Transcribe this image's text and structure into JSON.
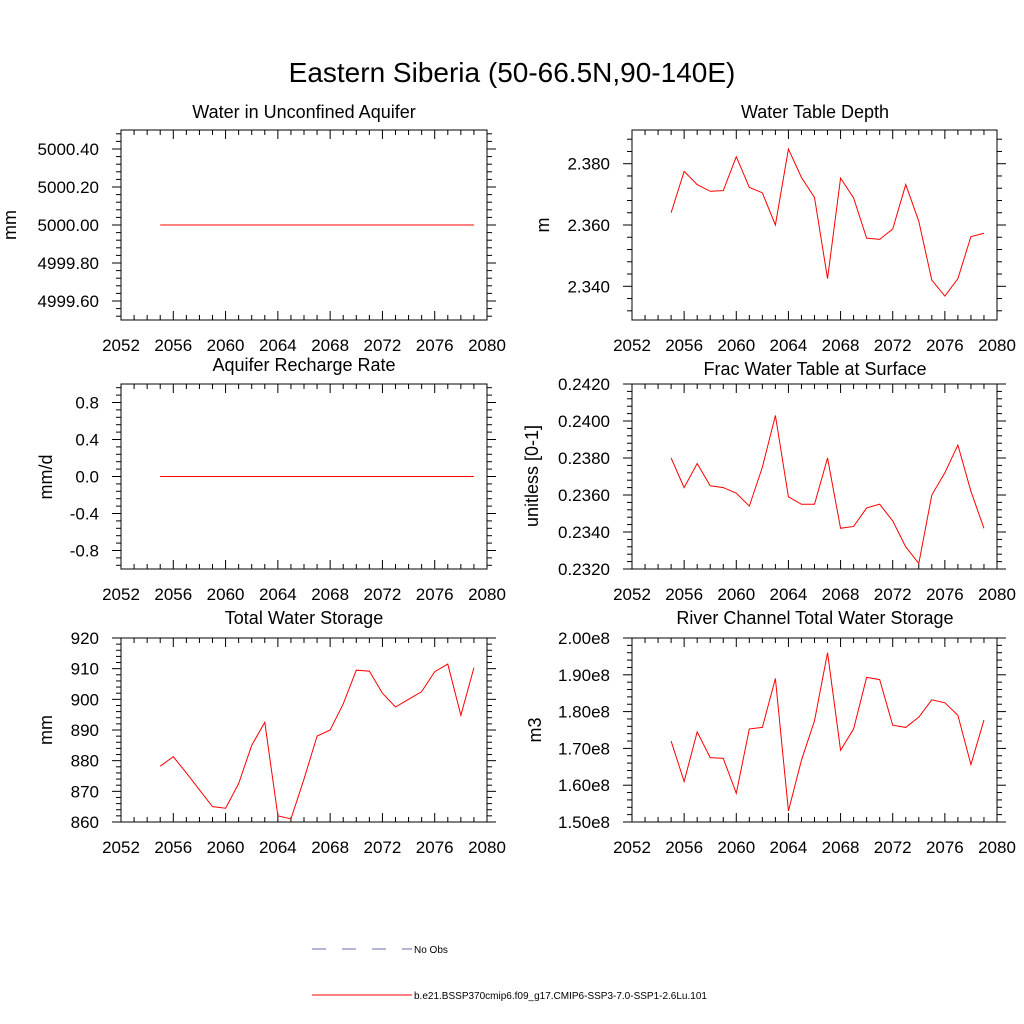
{
  "figure": {
    "title": "Eastern Siberia (50-66.5N,90-140E)",
    "series_color": "#ff0000",
    "obs_color": "#6b6bb0"
  },
  "legend": {
    "obs_label": "No Obs",
    "model_label": "b.e21.BSSP370cmip6.f09_g17.CMIP6-SSP3-7.0-SSP1-2.6Lu.101"
  },
  "chart_data": [
    {
      "type": "line",
      "title": "Water in Unconfined Aquifer",
      "ylabel": "mm",
      "xlabel": "",
      "xlim": [
        2052,
        2080
      ],
      "ylim": [
        4999.5,
        5000.5
      ],
      "xticks": [
        2052,
        2056,
        2060,
        2064,
        2068,
        2072,
        2076,
        2080
      ],
      "xtick_labels": [
        "2052",
        "2056",
        "2060",
        "2064",
        "2068",
        "2072",
        "2076",
        "2080"
      ],
      "yticks": [
        4999.6,
        4999.8,
        5000.0,
        5000.2,
        5000.4
      ],
      "ytick_labels": [
        "4999.60",
        "4999.80",
        "5000.00",
        "5000.20",
        "5000.40"
      ],
      "y_minor_step": 0.04,
      "x": [
        2055,
        2056,
        2057,
        2058,
        2059,
        2060,
        2061,
        2062,
        2063,
        2064,
        2065,
        2066,
        2067,
        2068,
        2069,
        2070,
        2071,
        2072,
        2073,
        2074,
        2075,
        2076,
        2077,
        2078,
        2079
      ],
      "series": [
        {
          "values": [
            5000,
            5000,
            5000,
            5000,
            5000,
            5000,
            5000,
            5000,
            5000,
            5000,
            5000,
            5000,
            5000,
            5000,
            5000,
            5000,
            5000,
            5000,
            5000,
            5000,
            5000,
            5000,
            5000,
            5000,
            5000
          ]
        }
      ]
    },
    {
      "type": "line",
      "title": "Water Table Depth",
      "ylabel": "m",
      "xlabel": "",
      "xlim": [
        2052,
        2080
      ],
      "ylim": [
        2.329,
        2.391
      ],
      "xticks": [
        2052,
        2056,
        2060,
        2064,
        2068,
        2072,
        2076,
        2080
      ],
      "xtick_labels": [
        "2052",
        "2056",
        "2060",
        "2064",
        "2068",
        "2072",
        "2076",
        "2080"
      ],
      "yticks": [
        2.34,
        2.36,
        2.38
      ],
      "ytick_labels": [
        "2.340",
        "2.360",
        "2.380"
      ],
      "y_minor_step": 0.004,
      "x": [
        2055,
        2056,
        2057,
        2058,
        2059,
        2060,
        2061,
        2062,
        2063,
        2064,
        2065,
        2066,
        2067,
        2068,
        2069,
        2070,
        2071,
        2072,
        2073,
        2074,
        2075,
        2076,
        2077,
        2078,
        2079
      ],
      "series": [
        {
          "values": [
            2.364,
            2.3775,
            2.3732,
            2.371,
            2.3712,
            2.3823,
            2.3723,
            2.3705,
            2.36,
            2.3848,
            2.3755,
            2.369,
            2.3425,
            2.3753,
            2.3688,
            2.3557,
            2.3553,
            2.3587,
            2.3732,
            2.3612,
            2.342,
            2.3368,
            2.3425,
            2.3562,
            2.3573
          ]
        }
      ]
    },
    {
      "type": "line",
      "title": "Aquifer Recharge Rate",
      "ylabel": "mm/d",
      "xlabel": "",
      "xlim": [
        2052,
        2080
      ],
      "ylim": [
        -1.0,
        1.0
      ],
      "xticks": [
        2052,
        2056,
        2060,
        2064,
        2068,
        2072,
        2076,
        2080
      ],
      "xtick_labels": [
        "2052",
        "2056",
        "2060",
        "2064",
        "2068",
        "2072",
        "2076",
        "2080"
      ],
      "yticks": [
        -0.8,
        -0.4,
        0.0,
        0.4,
        0.8
      ],
      "ytick_labels": [
        "-0.8",
        "-0.4",
        "0.0",
        "0.4",
        "0.8"
      ],
      "y_minor_step": 0.08,
      "x": [
        2055,
        2056,
        2057,
        2058,
        2059,
        2060,
        2061,
        2062,
        2063,
        2064,
        2065,
        2066,
        2067,
        2068,
        2069,
        2070,
        2071,
        2072,
        2073,
        2074,
        2075,
        2076,
        2077,
        2078,
        2079
      ],
      "series": [
        {
          "values": [
            0,
            0,
            0,
            0,
            0,
            0,
            0,
            0,
            0,
            0,
            0,
            0,
            0,
            0,
            0,
            0,
            0,
            0,
            0,
            0,
            0,
            0,
            0,
            0,
            0
          ]
        }
      ]
    },
    {
      "type": "line",
      "title": "Frac Water Table at Surface",
      "ylabel": "unitless [0-1]",
      "xlabel": "",
      "xlim": [
        2052,
        2080
      ],
      "ylim": [
        0.232,
        0.242
      ],
      "xticks": [
        2052,
        2056,
        2060,
        2064,
        2068,
        2072,
        2076,
        2080
      ],
      "xtick_labels": [
        "2052",
        "2056",
        "2060",
        "2064",
        "2068",
        "2072",
        "2076",
        "2080"
      ],
      "yticks": [
        0.232,
        0.234,
        0.236,
        0.238,
        0.24,
        0.242
      ],
      "ytick_labels": [
        "0.2320",
        "0.2340",
        "0.2360",
        "0.2380",
        "0.2400",
        "0.2420"
      ],
      "y_minor_step": 0.0004,
      "x": [
        2055,
        2056,
        2057,
        2058,
        2059,
        2060,
        2061,
        2062,
        2063,
        2064,
        2065,
        2066,
        2067,
        2068,
        2069,
        2070,
        2071,
        2072,
        2073,
        2074,
        2075,
        2076,
        2077,
        2078,
        2079
      ],
      "series": [
        {
          "values": [
            0.238,
            0.2364,
            0.2377,
            0.2365,
            0.2364,
            0.2361,
            0.2354,
            0.2375,
            0.2403,
            0.2359,
            0.2355,
            0.2355,
            0.238,
            0.2342,
            0.2343,
            0.2353,
            0.2355,
            0.2346,
            0.2332,
            0.2323,
            0.236,
            0.2372,
            0.2387,
            0.2362,
            0.2342
          ]
        }
      ]
    },
    {
      "type": "line",
      "title": "Total Water Storage",
      "ylabel": "mm",
      "xlabel": "",
      "xlim": [
        2052,
        2080
      ],
      "ylim": [
        860,
        920
      ],
      "xticks": [
        2052,
        2056,
        2060,
        2064,
        2068,
        2072,
        2076,
        2080
      ],
      "xtick_labels": [
        "2052",
        "2056",
        "2060",
        "2064",
        "2068",
        "2072",
        "2076",
        "2080"
      ],
      "yticks": [
        860,
        870,
        880,
        890,
        900,
        910,
        920
      ],
      "ytick_labels": [
        "860",
        "870",
        "880",
        "890",
        "900",
        "910",
        "920"
      ],
      "y_minor_step": 2,
      "x": [
        2055,
        2056,
        2057,
        2058,
        2059,
        2060,
        2061,
        2062,
        2063,
        2064,
        2065,
        2066,
        2067,
        2068,
        2069,
        2070,
        2071,
        2072,
        2073,
        2074,
        2075,
        2076,
        2077,
        2078,
        2079
      ],
      "series": [
        {
          "values": [
            878.2,
            881.3,
            876,
            870.5,
            865,
            864.5,
            872.5,
            885,
            892.5,
            862,
            861,
            874,
            888,
            890,
            898.5,
            909.5,
            909.2,
            902,
            897.5,
            900,
            902.5,
            909,
            911.5,
            894.8,
            910.3
          ]
        }
      ]
    },
    {
      "type": "line",
      "title": "River Channel Total Water Storage",
      "ylabel": "m3",
      "xlabel": "",
      "xlim": [
        2052,
        2080
      ],
      "ylim": [
        150000000,
        200000000
      ],
      "xticks": [
        2052,
        2056,
        2060,
        2064,
        2068,
        2072,
        2076,
        2080
      ],
      "xtick_labels": [
        "2052",
        "2056",
        "2060",
        "2064",
        "2068",
        "2072",
        "2076",
        "2080"
      ],
      "yticks": [
        150000000,
        160000000,
        170000000,
        180000000,
        190000000,
        200000000
      ],
      "ytick_labels": [
        "1.50e8",
        "1.60e8",
        "1.70e8",
        "1.80e8",
        "1.90e8",
        "2.00e8"
      ],
      "y_minor_step": 2000000,
      "x": [
        2055,
        2056,
        2057,
        2058,
        2059,
        2060,
        2061,
        2062,
        2063,
        2064,
        2065,
        2066,
        2067,
        2068,
        2069,
        2070,
        2071,
        2072,
        2073,
        2074,
        2075,
        2076,
        2077,
        2078,
        2079
      ],
      "series": [
        {
          "values": [
            172000000,
            161000000,
            174500000,
            167500000,
            167300000,
            157800000,
            175300000,
            175700000,
            189000000,
            153000000,
            166800000,
            177500000,
            196000000,
            169500000,
            175300000,
            189300000,
            188700000,
            176300000,
            175700000,
            178500000,
            183200000,
            182400000,
            179000000,
            165600000,
            177700000
          ]
        }
      ]
    }
  ]
}
